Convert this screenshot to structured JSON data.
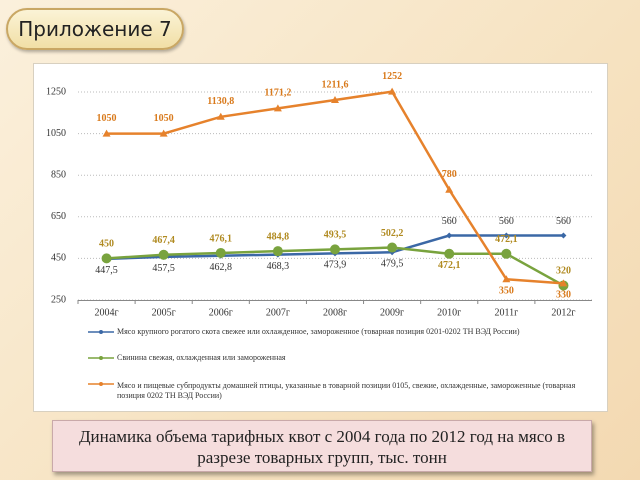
{
  "header": {
    "title": "Приложение 7"
  },
  "chart_data": {
    "type": "line",
    "categories": [
      "2004г",
      "2005г",
      "2006г",
      "2007г",
      "2008г",
      "2009г",
      "2010г",
      "2011г",
      "2012г"
    ],
    "series": [
      {
        "name": "Мясо крупного рогатого скота свежее или охлажденное, замороженное (товарная позиция 0201-0202 ТН ВЭД России)",
        "color": "#3b68a6",
        "values": [
          447.5,
          457.5,
          462.8,
          468.3,
          473.9,
          479.5,
          560,
          560,
          560
        ],
        "value_labels": [
          "447,5",
          "457,5",
          "462,8",
          "468,3",
          "473,9",
          "479,5",
          "560",
          "560",
          "560"
        ]
      },
      {
        "name": "Свинина свежая, охлажденная или замороженная",
        "color": "#79a33e",
        "values": [
          450,
          467.4,
          476.1,
          484.8,
          493.5,
          502.2,
          472.1,
          472.1,
          320
        ],
        "value_labels": [
          "450",
          "467,4",
          "476,1",
          "484,8",
          "493,5",
          "502,2",
          "472,1",
          "472,1",
          "320"
        ]
      },
      {
        "name": "Мясо и пищевые субпродукты домашней птицы, указанные в товарной позиции 0105, свежие, охлажденные, замороженные (товарная позиция 0202 ТН ВЭД России)",
        "color": "#e6822c",
        "values": [
          1050,
          1050,
          1130.8,
          1171.2,
          1211.6,
          1252,
          780,
          350,
          330
        ],
        "value_labels": [
          "1050",
          "1050",
          "1130,8",
          "1171,2",
          "1211,6",
          "1252",
          "780",
          "350",
          "330"
        ]
      }
    ],
    "ylim": [
      250,
      1250
    ],
    "yticks": [
      250,
      450,
      650,
      850,
      1050,
      1250
    ],
    "grid": true
  },
  "caption": "Динамика объема тарифных квот с 2004 года по 2012 год на мясо в разрезе товарных групп, тыс. тонн"
}
